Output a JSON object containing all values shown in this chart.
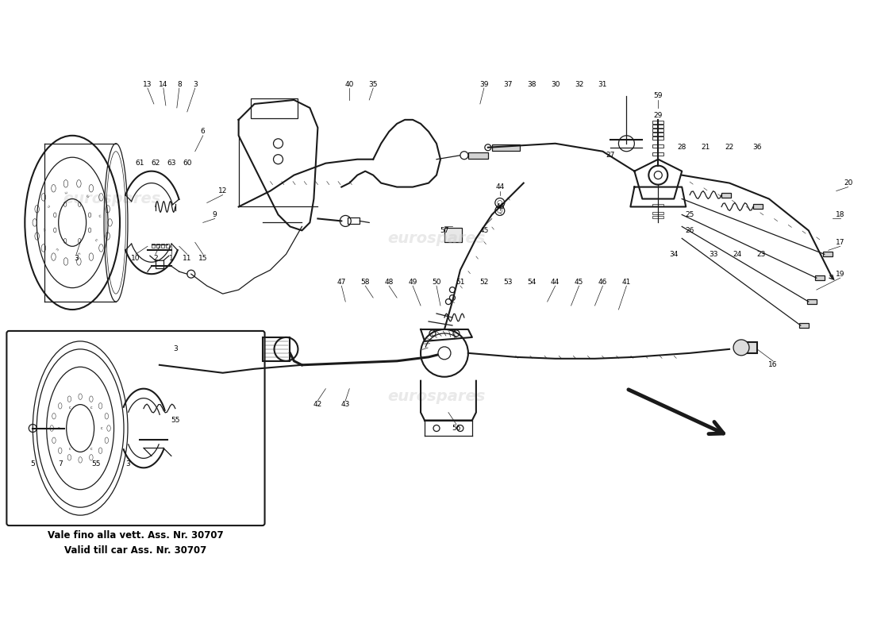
{
  "bg_color": "#ffffff",
  "line_color": "#1a1a1a",
  "watermark_text": "eurospares",
  "note_line1": "Vale fino alla vett. Ass. Nr. 30707",
  "note_line2": "Valid till car Ass. Nr. 30707",
  "figsize": [
    11.0,
    8.0
  ],
  "dpi": 100
}
